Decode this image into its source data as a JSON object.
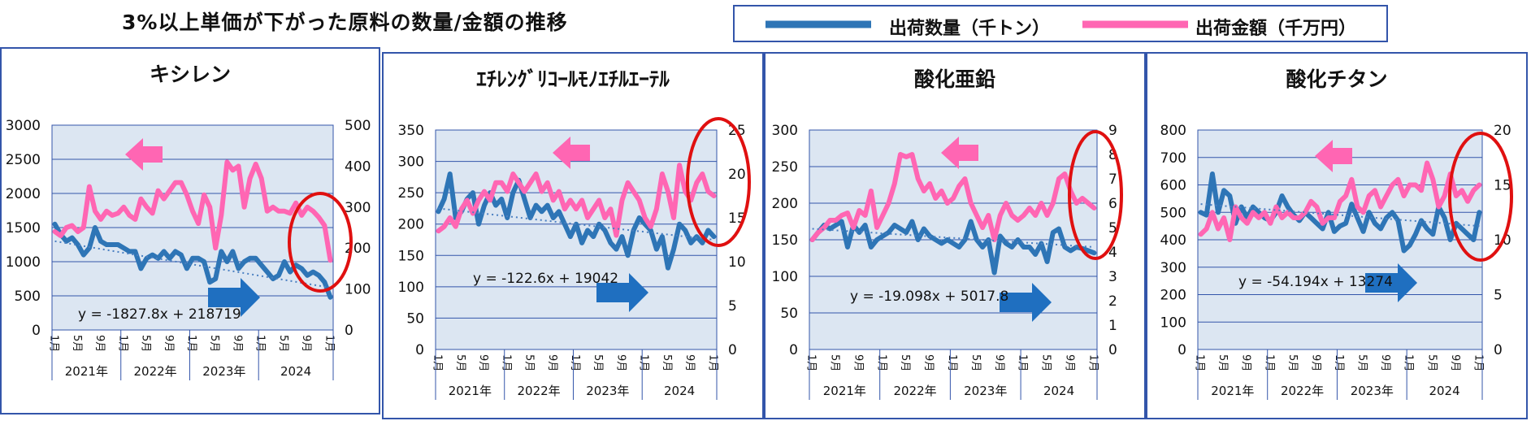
{
  "header": {
    "title": "3%以上単価が下がった原料の数量/金額の推移",
    "legend": [
      {
        "label": "出荷数量（千トン）",
        "color": "#2E75B6"
      },
      {
        "label": "出荷金額（千万円）",
        "color": "#FF66B3"
      }
    ]
  },
  "chart_data": [
    {
      "type": "line",
      "title": "キシレン",
      "ylim_left": [
        0,
        3000
      ],
      "yticks_left": [
        "0",
        "500",
        "1000",
        "1500",
        "2000",
        "2500",
        "3000"
      ],
      "ylim_right": [
        0,
        500
      ],
      "yticks_right": [
        "0",
        "100",
        "200",
        "300",
        "400",
        "500"
      ],
      "x_month_labels": [
        "1月",
        "5月",
        "9月",
        "1月",
        "5月",
        "9月",
        "1月",
        "5月",
        "9月",
        "1月",
        "5月",
        "9月",
        "1月"
      ],
      "year_groups": [
        {
          "label": "2021年",
          "span": 12
        },
        {
          "label": "2022年",
          "span": 12
        },
        {
          "label": "2023年",
          "span": 12
        },
        {
          "label": "2024",
          "span": 13
        }
      ],
      "trend_equation": "y = -1827.8x + 218719",
      "series": [
        {
          "axis": "left",
          "color": "#2E75B6",
          "values": [
            1550,
            1400,
            1300,
            1350,
            1250,
            1100,
            1200,
            1500,
            1300,
            1250,
            1250,
            1250,
            1200,
            1150,
            1150,
            900,
            1050,
            1100,
            1050,
            1150,
            1050,
            1150,
            1100,
            900,
            1050,
            1050,
            1000,
            700,
            750,
            1150,
            1000,
            1150,
            900,
            1000,
            1050,
            1050,
            950,
            850,
            750,
            800,
            1000,
            850,
            950,
            900,
            800,
            850,
            800,
            700,
            480
          ]
        },
        {
          "axis": "right",
          "color": "#FF66B3",
          "values": [
            240,
            230,
            250,
            255,
            240,
            250,
            350,
            290,
            270,
            290,
            280,
            285,
            300,
            280,
            270,
            320,
            300,
            285,
            340,
            320,
            340,
            360,
            360,
            330,
            290,
            260,
            330,
            300,
            200,
            280,
            410,
            390,
            400,
            300,
            370,
            405,
            370,
            290,
            300,
            290,
            290,
            285,
            310,
            280,
            300,
            290,
            275,
            255,
            170
          ]
        },
        {
          "axis": "left",
          "color": "#4a7fc1",
          "dotted": true,
          "trend_from": 1300,
          "trend_to": 620
        }
      ]
    },
    {
      "type": "line",
      "title": "ｴﾁﾚﾝｸﾞﾘｺｰﾙﾓﾉｴﾁﾙｴｰﾃﾙ",
      "ylim_left": [
        0,
        350
      ],
      "yticks_left": [
        "0",
        "50",
        "100",
        "150",
        "200",
        "250",
        "300",
        "350"
      ],
      "ylim_right": [
        0,
        25
      ],
      "yticks_right": [
        "0",
        "5",
        "10",
        "15",
        "20",
        "25"
      ],
      "x_month_labels": [
        "1月",
        "5月",
        "9月",
        "1月",
        "5月",
        "9月",
        "1月",
        "5月",
        "9月",
        "1月",
        "5月",
        "9月",
        "1月"
      ],
      "year_groups": [
        {
          "label": "2021年",
          "span": 12
        },
        {
          "label": "2022年",
          "span": 12
        },
        {
          "label": "2023年",
          "span": 12
        },
        {
          "label": "2024",
          "span": 13
        }
      ],
      "trend_equation": "y = -122.6x + 19042",
      "series": [
        {
          "axis": "left",
          "color": "#2E75B6",
          "values": [
            220,
            240,
            280,
            210,
            220,
            240,
            250,
            200,
            230,
            250,
            230,
            240,
            210,
            250,
            270,
            240,
            210,
            230,
            220,
            230,
            210,
            220,
            200,
            180,
            200,
            170,
            190,
            180,
            200,
            190,
            170,
            160,
            180,
            150,
            190,
            210,
            200,
            190,
            160,
            180,
            130,
            160,
            200,
            190,
            170,
            180,
            170,
            190,
            180
          ]
        },
        {
          "axis": "right",
          "color": "#FF66B3",
          "values": [
            13.5,
            14,
            15,
            14,
            16,
            17,
            15.5,
            17,
            18,
            17,
            19,
            19,
            18,
            20,
            19,
            18,
            19,
            20,
            18,
            19,
            17,
            18,
            16,
            17,
            16,
            17,
            15,
            16,
            17,
            15,
            16,
            13,
            17,
            19,
            18,
            17,
            15,
            14,
            16,
            20,
            18,
            15,
            21,
            18,
            17,
            19,
            20,
            18,
            17.5
          ]
        },
        {
          "axis": "left",
          "color": "#4a7fc1",
          "dotted": true,
          "trend_from": 225,
          "trend_to": 175
        }
      ]
    },
    {
      "type": "line",
      "title": "酸化亜鉛",
      "ylim_left": [
        0,
        300
      ],
      "yticks_left": [
        "0",
        "50",
        "100",
        "150",
        "200",
        "250",
        "300"
      ],
      "ylim_right": [
        0,
        9
      ],
      "yticks_right": [
        "0",
        "1",
        "2",
        "3",
        "4",
        "5",
        "6",
        "7",
        "8",
        "9"
      ],
      "x_month_labels": [
        "1月",
        "5月",
        "9月",
        "1月",
        "5月",
        "9月",
        "1月",
        "5月",
        "9月",
        "1月",
        "5月",
        "9月",
        "1月"
      ],
      "year_groups": [
        {
          "label": "2021年",
          "span": 12
        },
        {
          "label": "2022年",
          "span": 12
        },
        {
          "label": "2023年",
          "span": 12
        },
        {
          "label": "2024",
          "span": 13
        }
      ],
      "trend_equation": "y = -19.098x + 5017.8",
      "series": [
        {
          "axis": "left",
          "color": "#2E75B6",
          "values": [
            150,
            160,
            170,
            165,
            170,
            175,
            140,
            170,
            160,
            170,
            140,
            150,
            155,
            160,
            170,
            165,
            160,
            175,
            150,
            165,
            155,
            150,
            145,
            150,
            145,
            140,
            150,
            175,
            150,
            140,
            150,
            105,
            155,
            145,
            140,
            150,
            140,
            140,
            130,
            145,
            120,
            160,
            165,
            140,
            135,
            140,
            138,
            135,
            132
          ]
        },
        {
          "axis": "right",
          "color": "#FF66B3",
          "values": [
            4.5,
            4.8,
            5.0,
            5.3,
            5.3,
            5.5,
            5.6,
            5.0,
            5.7,
            5.5,
            6.5,
            5.0,
            5.5,
            6.0,
            6.8,
            8.0,
            7.9,
            8.0,
            7.0,
            6.5,
            6.8,
            6.2,
            6.5,
            6.0,
            6.2,
            6.7,
            7.0,
            6.0,
            5.5,
            5.0,
            5.5,
            4.5,
            5.5,
            6.0,
            5.5,
            5.3,
            5.5,
            5.8,
            5.5,
            6.0,
            5.5,
            6.0,
            7.0,
            7.2,
            6.5,
            6.0,
            6.2,
            6.0,
            5.8
          ]
        },
        {
          "axis": "left",
          "color": "#4a7fc1",
          "dotted": true,
          "trend_from": 165,
          "trend_to": 140
        }
      ]
    },
    {
      "type": "line",
      "title": "酸化チタン",
      "ylim_left": [
        0,
        800
      ],
      "yticks_left": [
        "0",
        "100",
        "200",
        "300",
        "400",
        "500",
        "600",
        "700",
        "800"
      ],
      "ylim_right": [
        0,
        20
      ],
      "yticks_right": [
        "0",
        "5",
        "10",
        "15",
        "20"
      ],
      "x_month_labels": [
        "1月",
        "5月",
        "9月",
        "1月",
        "5月",
        "9月",
        "1月",
        "5月",
        "9月",
        "1月",
        "5月",
        "9月",
        "1月"
      ],
      "year_groups": [
        {
          "label": "2021年",
          "span": 12
        },
        {
          "label": "2022年",
          "span": 12
        },
        {
          "label": "2023年",
          "span": 12
        },
        {
          "label": "2024",
          "span": 13
        }
      ],
      "trend_equation": "y = -54.194x + 13274",
      "series": [
        {
          "axis": "left",
          "color": "#2E75B6",
          "values": [
            500,
            490,
            640,
            500,
            580,
            560,
            460,
            520,
            480,
            520,
            500,
            480,
            470,
            500,
            560,
            520,
            490,
            470,
            500,
            480,
            460,
            440,
            500,
            430,
            450,
            460,
            530,
            480,
            430,
            500,
            460,
            440,
            480,
            500,
            470,
            360,
            380,
            420,
            470,
            440,
            420,
            520,
            480,
            400,
            460,
            440,
            420,
            400,
            500
          ]
        },
        {
          "axis": "right",
          "color": "#FF66B3",
          "values": [
            10.5,
            11.0,
            12.5,
            11.0,
            12.0,
            10.0,
            13.0,
            12.0,
            11.5,
            12.5,
            12.0,
            12.5,
            11.5,
            13.0,
            12.0,
            12.5,
            12.0,
            12.0,
            12.5,
            13.5,
            13.0,
            11.5,
            12.0,
            12.0,
            13.5,
            14.0,
            15.5,
            13.0,
            12.5,
            14.0,
            14.5,
            13.0,
            14.0,
            15.0,
            15.5,
            14.0,
            15.0,
            15.0,
            14.5,
            17.0,
            15.5,
            13.0,
            14.0,
            16.0,
            14.0,
            14.5,
            13.5,
            14.5,
            15.0
          ]
        },
        {
          "axis": "left",
          "color": "#4a7fc1",
          "dotted": true,
          "trend_from": 530,
          "trend_to": 450
        }
      ]
    }
  ]
}
